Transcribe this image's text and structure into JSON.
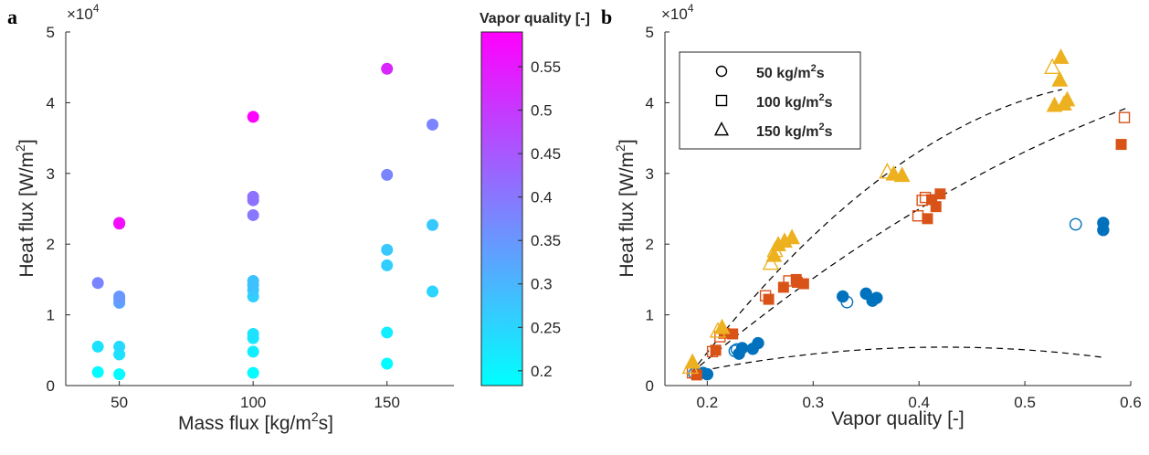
{
  "chart_data": [
    {
      "type": "scatter",
      "panel_label": "a",
      "xlabel": "Mass flux [kg/m",
      "xlabel_sup": "2",
      "xlabel_end": "s]",
      "ylabel": "Heat flux [W/m",
      "ylabel_sup": "2",
      "ylabel_end": "]",
      "xlim": [
        30,
        175
      ],
      "ylim": [
        0,
        50000
      ],
      "xticks": [
        50,
        100,
        150
      ],
      "yticks": [
        0,
        10000,
        20000,
        30000,
        40000,
        50000
      ],
      "ytick_labels": [
        "0",
        "1",
        "2",
        "3",
        "4",
        "5"
      ],
      "y_exponent_base": "×10",
      "y_exponent": "4",
      "colorbar": {
        "title": "Vapor quality [-]",
        "range": [
          0.183,
          0.59
        ],
        "ticks": [
          0.2,
          0.25,
          0.3,
          0.35,
          0.4,
          0.45,
          0.5,
          0.55
        ],
        "tick_labels": [
          "0.2",
          "0.25",
          "0.3",
          "0.35",
          "0.4",
          "0.45",
          "0.5",
          "0.55"
        ],
        "colors": [
          "#00ffff",
          "#ff00ff"
        ]
      },
      "points": [
        {
          "x": 42,
          "y": 1900,
          "c": 0.19
        },
        {
          "x": 42,
          "y": 5500,
          "c": 0.23
        },
        {
          "x": 42,
          "y": 14500,
          "c": 0.38
        },
        {
          "x": 50,
          "y": 1600,
          "c": 0.19
        },
        {
          "x": 50,
          "y": 4400,
          "c": 0.23
        },
        {
          "x": 50,
          "y": 5500,
          "c": 0.24
        },
        {
          "x": 50,
          "y": 11700,
          "c": 0.33
        },
        {
          "x": 50,
          "y": 12200,
          "c": 0.34
        },
        {
          "x": 50,
          "y": 12600,
          "c": 0.35
        },
        {
          "x": 50,
          "y": 22900,
          "c": 0.56
        },
        {
          "x": 50,
          "y": 23000,
          "c": 0.57
        },
        {
          "x": 100,
          "y": 1800,
          "c": 0.19
        },
        {
          "x": 100,
          "y": 4800,
          "c": 0.21
        },
        {
          "x": 100,
          "y": 6700,
          "c": 0.22
        },
        {
          "x": 100,
          "y": 7300,
          "c": 0.23
        },
        {
          "x": 100,
          "y": 12600,
          "c": 0.26
        },
        {
          "x": 100,
          "y": 13500,
          "c": 0.27
        },
        {
          "x": 100,
          "y": 14200,
          "c": 0.28
        },
        {
          "x": 100,
          "y": 14800,
          "c": 0.28
        },
        {
          "x": 100,
          "y": 24100,
          "c": 0.4
        },
        {
          "x": 100,
          "y": 26200,
          "c": 0.41
        },
        {
          "x": 100,
          "y": 26700,
          "c": 0.41
        },
        {
          "x": 100,
          "y": 38000,
          "c": 0.59
        },
        {
          "x": 150,
          "y": 3100,
          "c": 0.19
        },
        {
          "x": 150,
          "y": 7500,
          "c": 0.21
        },
        {
          "x": 150,
          "y": 17000,
          "c": 0.26
        },
        {
          "x": 150,
          "y": 19200,
          "c": 0.27
        },
        {
          "x": 150,
          "y": 29800,
          "c": 0.38
        },
        {
          "x": 150,
          "y": 44800,
          "c": 0.53
        },
        {
          "x": 167,
          "y": 13300,
          "c": 0.25
        },
        {
          "x": 167,
          "y": 22700,
          "c": 0.27
        },
        {
          "x": 167,
          "y": 36900,
          "c": 0.38
        }
      ]
    },
    {
      "type": "scatter",
      "panel_label": "b",
      "xlabel": "Vapor quality [-]",
      "ylabel": "Heat flux [W/m",
      "ylabel_sup": "2",
      "ylabel_end": "]",
      "xlim": [
        0.16,
        0.6
      ],
      "ylim": [
        0,
        50000
      ],
      "xticks": [
        0.2,
        0.3,
        0.4,
        0.5,
        0.6
      ],
      "xtick_labels": [
        "0.2",
        "0.3",
        "0.4",
        "0.5",
        "0.6"
      ],
      "yticks": [
        0,
        10000,
        20000,
        30000,
        40000,
        50000
      ],
      "ytick_labels": [
        "0",
        "1",
        "2",
        "3",
        "4",
        "5"
      ],
      "y_exponent_base": "×10",
      "y_exponent": "4",
      "series": [
        {
          "name": "50 kg/m",
          "name_sup": "2",
          "name_end": "s",
          "marker": "circle",
          "color": "#0072bd",
          "open": [
            [
              0.188,
              1700
            ],
            [
              0.228,
              5100
            ],
            [
              0.226,
              4900
            ],
            [
              0.332,
              11800
            ],
            [
              0.548,
              22800
            ]
          ],
          "filled": [
            [
              0.196,
              1800
            ],
            [
              0.2,
              1600
            ],
            [
              0.23,
              4500
            ],
            [
              0.233,
              5300
            ],
            [
              0.243,
              5200
            ],
            [
              0.248,
              6000
            ],
            [
              0.328,
              12600
            ],
            [
              0.35,
              13000
            ],
            [
              0.356,
              12000
            ],
            [
              0.36,
              12400
            ],
            [
              0.574,
              23000
            ],
            [
              0.574,
              22000
            ]
          ]
        },
        {
          "name": "100 kg/m",
          "name_sup": "2",
          "name_end": "s",
          "marker": "square",
          "color": "#d95319",
          "open": [
            [
              0.186,
              1800
            ],
            [
              0.205,
              4800
            ],
            [
              0.212,
              6900
            ],
            [
              0.255,
              12700
            ],
            [
              0.277,
              14800
            ],
            [
              0.399,
              24000
            ],
            [
              0.403,
              26200
            ],
            [
              0.406,
              26600
            ],
            [
              0.594,
              37900
            ]
          ],
          "filled": [
            [
              0.19,
              1500
            ],
            [
              0.208,
              5000
            ],
            [
              0.216,
              7400
            ],
            [
              0.224,
              7300
            ],
            [
              0.258,
              12200
            ],
            [
              0.272,
              13900
            ],
            [
              0.284,
              15000
            ],
            [
              0.285,
              14600
            ],
            [
              0.291,
              14400
            ],
            [
              0.408,
              23600
            ],
            [
              0.412,
              26300
            ],
            [
              0.416,
              25300
            ],
            [
              0.42,
              27100
            ],
            [
              0.591,
              34100
            ]
          ]
        },
        {
          "name": "150 kg/m",
          "name_sup": "2",
          "name_end": "s",
          "marker": "triangle",
          "color": "#edb120",
          "open": [
            [
              0.184,
              2600
            ],
            [
              0.21,
              7700
            ],
            [
              0.26,
              17300
            ],
            [
              0.264,
              19100
            ],
            [
              0.37,
              30200
            ],
            [
              0.526,
              45000
            ]
          ],
          "filled": [
            [
              0.186,
              3300
            ],
            [
              0.214,
              8200
            ],
            [
              0.263,
              18400
            ],
            [
              0.267,
              19900
            ],
            [
              0.273,
              20400
            ],
            [
              0.28,
              20900
            ],
            [
              0.376,
              29900
            ],
            [
              0.384,
              29700
            ],
            [
              0.528,
              39600
            ],
            [
              0.533,
              43200
            ],
            [
              0.534,
              46400
            ],
            [
              0.537,
              39800
            ],
            [
              0.54,
              40400
            ]
          ]
        }
      ],
      "fit_curves": [
        {
          "x": [
            0.185,
            0.575
          ],
          "a": 30500,
          "b": -64000,
          "x0": 0.185
        },
        {
          "x": [
            0.185,
            0.595
          ],
          "a": 126000,
          "b": -85000,
          "x0": 0.185
        },
        {
          "x": [
            0.185,
            0.535
          ],
          "a": 195000,
          "b": -230000,
          "x0": 0.185
        }
      ],
      "legend_location": "top-left"
    }
  ]
}
